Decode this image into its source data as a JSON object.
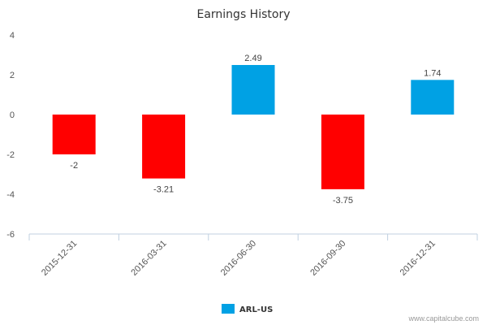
{
  "chart_data": {
    "type": "bar",
    "title": "Earnings History",
    "categories": [
      "2015-12-31",
      "2016-03-31",
      "2016-06-30",
      "2016-09-30",
      "2016-12-31"
    ],
    "series": [
      {
        "name": "ARL-US",
        "values": [
          -2,
          -3.21,
          2.49,
          -3.75,
          1.74
        ]
      }
    ],
    "data_labels": [
      "-2",
      "-3.21",
      "2.49",
      "-3.75",
      "1.74"
    ],
    "ylim": [
      -6,
      4
    ],
    "yticks": [
      4,
      2,
      0,
      -2,
      -4,
      -6
    ],
    "xlabel": "",
    "ylabel": "",
    "grid": false,
    "legend_position": "bottom-center",
    "colors": {
      "positive": "#00a1e4",
      "negative": "#ff0000",
      "legend": "#00a1e4",
      "axis": "#c0d0e0"
    }
  },
  "credit": "www.capitalcube.com"
}
